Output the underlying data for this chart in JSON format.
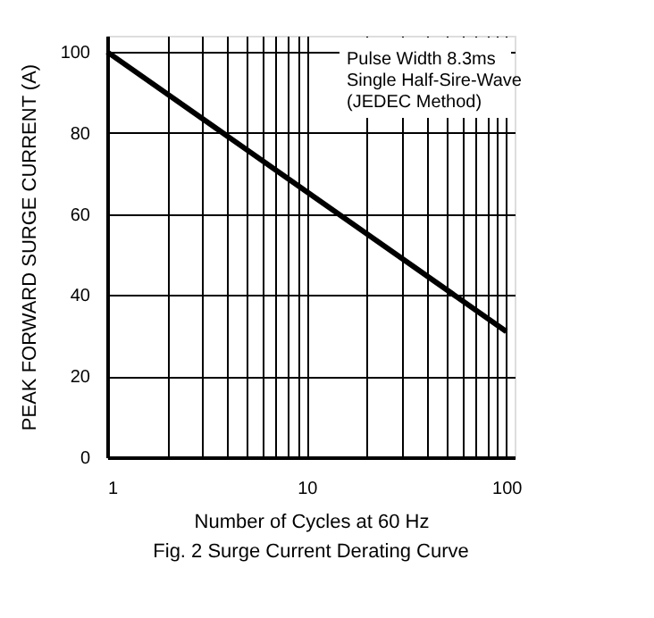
{
  "chart_data": {
    "type": "line",
    "title": "Fig. 2  Surge Current Derating Curve",
    "xlabel": "Number of Cycles at 60 Hz",
    "ylabel": "PEAK FORWARD SURGE CURRENT (A)",
    "x": [
      1,
      10,
      100
    ],
    "series": [
      {
        "color": "#000000",
        "values": [
          100,
          65.5,
          31
        ]
      }
    ],
    "log": "x",
    "xlim": [
      1,
      110
    ],
    "xticks": [
      1,
      {
        "value": 2,
        "label": null
      },
      {
        "value": 3,
        "label": null
      },
      {
        "value": 4,
        "label": null
      },
      {
        "value": 5,
        "label": null
      },
      {
        "value": 6,
        "label": null
      },
      {
        "value": 7,
        "label": null
      },
      {
        "value": 8,
        "label": null
      },
      {
        "value": 9,
        "label": null
      },
      10,
      {
        "value": 20,
        "label": null
      },
      {
        "value": 30,
        "label": null
      },
      {
        "value": 40,
        "label": null
      },
      {
        "value": 50,
        "label": null
      },
      {
        "value": 60,
        "label": null
      },
      {
        "value": 70,
        "label": null
      },
      {
        "value": 80,
        "label": null
      },
      {
        "value": 90,
        "label": null
      },
      100
    ],
    "ylim": [
      0,
      104
    ],
    "yticks": [
      0,
      20,
      40,
      60,
      80,
      100
    ],
    "grid": true,
    "marker": "none",
    "line_style": "solid",
    "annotations": [
      "Pulse Width 8.3ms\nSingle Half-Sire-Wave\n(JEDEC Method)"
    ]
  }
}
